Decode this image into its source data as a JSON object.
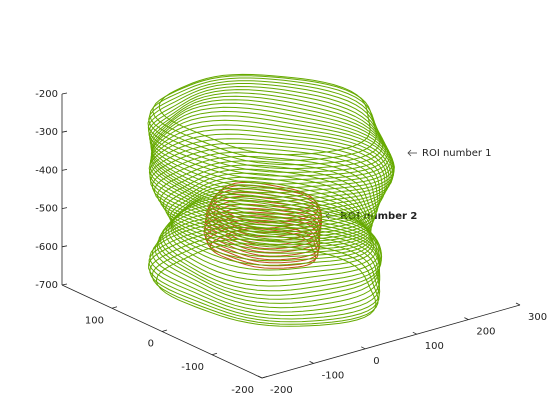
{
  "chart_data": {
    "type": "contour3d",
    "xlim": [
      -200,
      300
    ],
    "xticks": [
      -200,
      -100,
      0,
      100,
      200,
      300
    ],
    "ylim": [
      -200,
      200
    ],
    "yticks": [
      -200,
      -100,
      0,
      100
    ],
    "zlim": [
      -700,
      -200
    ],
    "zticks": [
      -700,
      -600,
      -500,
      -400,
      -300,
      -200
    ],
    "series": [
      {
        "name": "ROI number 1",
        "color": "#66aa00",
        "center": [
          30,
          20
        ],
        "z": [
          -680,
          -670,
          -660,
          -650,
          -640,
          -630,
          -620,
          -610,
          -600,
          -590,
          -580,
          -570,
          -560,
          -550,
          -540,
          -530,
          -520,
          -510,
          -500,
          -490,
          -480,
          -470,
          -460,
          -450,
          -440,
          -430,
          -420,
          -410,
          -400,
          -390,
          -380,
          -370,
          -360,
          -350,
          -340,
          -330,
          -320,
          -310,
          -300,
          -290,
          -280,
          -270,
          -260,
          -250,
          -240,
          -230
        ],
        "radius": [
          150,
          155,
          158,
          160,
          160,
          160,
          158,
          156,
          155,
          155,
          154,
          152,
          148,
          144,
          140,
          138,
          137,
          137,
          138,
          140,
          142,
          145,
          148,
          152,
          155,
          158,
          160,
          162,
          164,
          165,
          166,
          167,
          168,
          168,
          168,
          168,
          167,
          166,
          165,
          164,
          163,
          162,
          160,
          158,
          154,
          146
        ]
      },
      {
        "name": "ROI number 2",
        "color": "#c0501a",
        "center": [
          0,
          0
        ],
        "z": [
          -560,
          -550,
          -540,
          -530,
          -520,
          -510,
          -500,
          -490,
          -480,
          -470,
          -460,
          -450,
          -440
        ],
        "radius": [
          72,
          76,
          78,
          80,
          80,
          80,
          80,
          80,
          80,
          79,
          78,
          76,
          72
        ]
      }
    ]
  }
}
